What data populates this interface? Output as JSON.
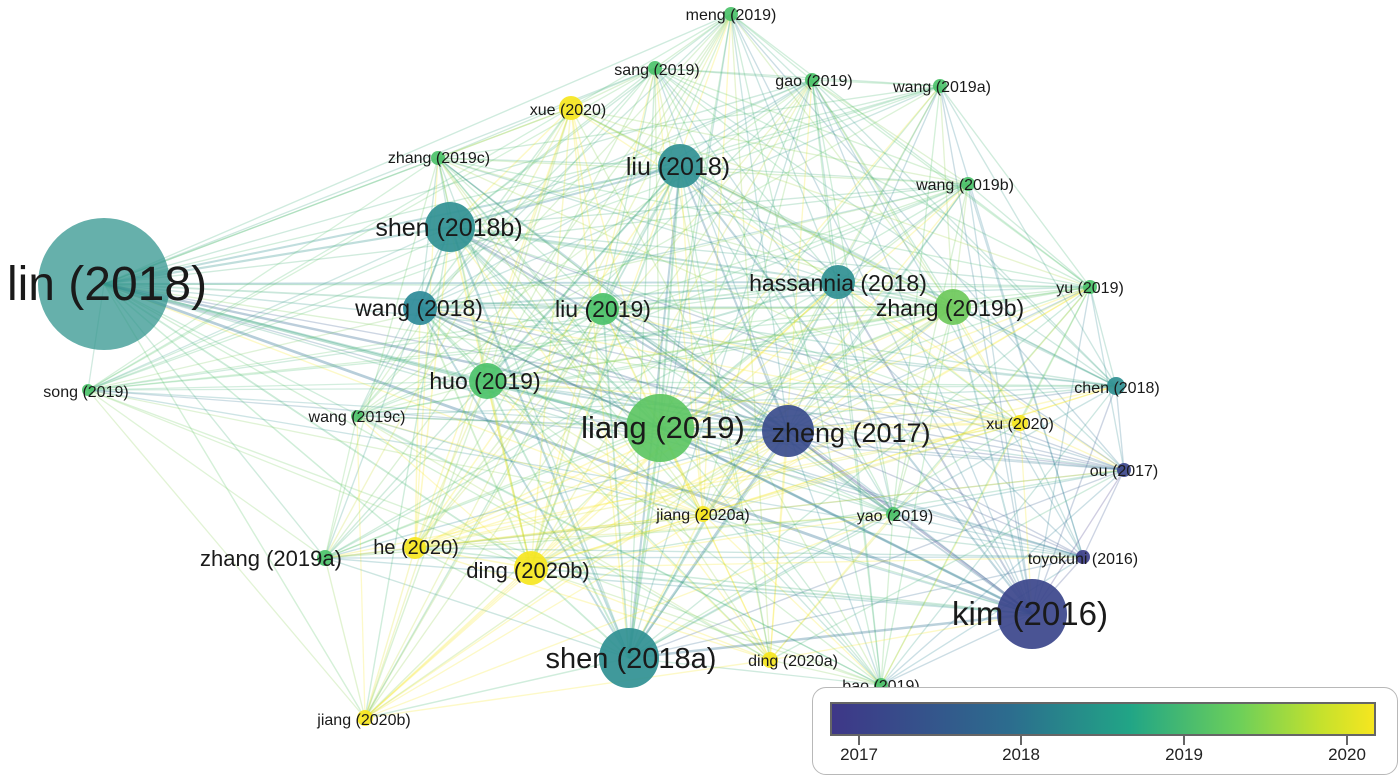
{
  "nodes": [
    {
      "label": "lin (2018)",
      "year": 2018.2,
      "weight": 9
    },
    {
      "label": "meng (2019)",
      "year": 2019.0,
      "weight": 1
    },
    {
      "label": "sang (2019)",
      "year": 2019.0,
      "weight": 1
    },
    {
      "label": "gao (2019)",
      "year": 2019.0,
      "weight": 1
    },
    {
      "label": "wang (2019a)",
      "year": 2019.0,
      "weight": 1
    },
    {
      "label": "xue (2020)",
      "year": 2020.0,
      "weight": 1.3
    },
    {
      "label": "zhang (2019c)",
      "year": 2019.0,
      "weight": 1
    },
    {
      "label": "liu (2018)",
      "year": 2018.1,
      "weight": 3
    },
    {
      "label": "wang (2019b)",
      "year": 2019.0,
      "weight": 1
    },
    {
      "label": "shen (2018b)",
      "year": 2018.1,
      "weight": 3.5
    },
    {
      "label": "hassannia (2018)",
      "year": 2018.1,
      "weight": 2.6
    },
    {
      "label": "yu (2019)",
      "year": 2019.0,
      "weight": 1
    },
    {
      "label": "wang (2018)",
      "year": 2018.0,
      "weight": 2.5
    },
    {
      "label": "liu (2019)",
      "year": 2019.0,
      "weight": 2.2
    },
    {
      "label": "zhang (2019b)",
      "year": 2019.2,
      "weight": 2.4
    },
    {
      "label": "song (2019)",
      "year": 2019.0,
      "weight": 0.9
    },
    {
      "label": "chen (2018)",
      "year": 2018.1,
      "weight": 1.2
    },
    {
      "label": "huo (2019)",
      "year": 2019.0,
      "weight": 2.5
    },
    {
      "label": "wang (2019c)",
      "year": 2019.0,
      "weight": 0.9
    },
    {
      "label": "liang (2019)",
      "year": 2019.1,
      "weight": 5
    },
    {
      "label": "zheng (2017)",
      "year": 2017.1,
      "weight": 4
    },
    {
      "label": "xu (2020)",
      "year": 2020.0,
      "weight": 1
    },
    {
      "label": "ou (2017)",
      "year": 2017.0,
      "weight": 1
    },
    {
      "label": "jiang (2020a)",
      "year": 2020.0,
      "weight": 1.1
    },
    {
      "label": "yao (2019)",
      "year": 2019.0,
      "weight": 1
    },
    {
      "label": "toyokuni (2016)",
      "year": 2016.9,
      "weight": 1
    },
    {
      "label": "zhang (2019a)",
      "year": 2019.0,
      "weight": 1.1
    },
    {
      "label": "he (2020)",
      "year": 2020.0,
      "weight": 1.5
    },
    {
      "label": "ding (2020b)",
      "year": 2020.0,
      "weight": 2.3
    },
    {
      "label": "kim (2016)",
      "year": 2017.0,
      "weight": 5
    },
    {
      "label": "shen (2018a)",
      "year": 2018.1,
      "weight": 4.3
    },
    {
      "label": "ding (2020a)",
      "year": 2020.0,
      "weight": 1.1
    },
    {
      "label": "bao (2019)",
      "year": 2019.0,
      "weight": 1
    },
    {
      "label": "jiang (2020b)",
      "year": 2020.0,
      "weight": 1.2
    }
  ],
  "legend": {
    "ticks": [
      "2017",
      "2018",
      "2019",
      "2020"
    ]
  },
  "colors": {
    "y2017": "#3e3788",
    "y2018": "#2d8a98",
    "y2019": "#4cc26a",
    "y2020": "#f6e61f"
  }
}
